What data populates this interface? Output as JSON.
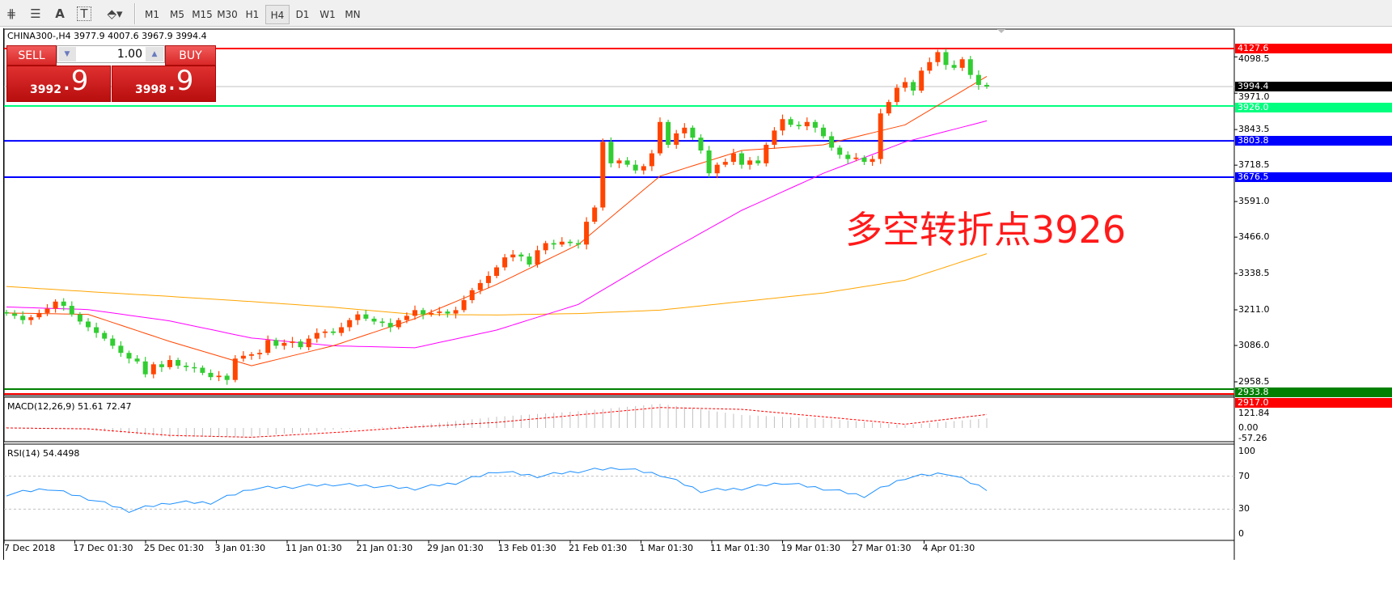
{
  "toolbar": {
    "icons": [
      "fibonacci-fan-icon",
      "fibonacci-lines-icon",
      "text-icon",
      "text-label-icon",
      "arrows-dropdown-icon"
    ],
    "text_icon_label": "A",
    "text_label_icon_label": "T",
    "timeframes": [
      "M1",
      "M5",
      "M15",
      "M30",
      "H1",
      "H4",
      "D1",
      "W1",
      "MN"
    ],
    "active_timeframe": "H4"
  },
  "chart": {
    "title": "CHINA300-,H4  3977.9 4007.6 3967.9 3994.4",
    "annotation": "多空转折点3926",
    "colors": {
      "bull": "#ff4500",
      "bear": "#32cd32",
      "ma_fast": "#ff4500",
      "ma_mid": "#ff00ff",
      "ma_slow": "#ffa500",
      "rsi": "#1e90ff",
      "macd_hist": "#c0c0c0",
      "macd_signal": "#ff0000"
    }
  },
  "trade_panel": {
    "sell_label": "SELL",
    "buy_label": "BUY",
    "lot": "1.00",
    "sell_price_main": "3992",
    "sell_price_pip": ".9",
    "buy_price_main": "3998",
    "buy_price_pip": ".9"
  },
  "price_axis": {
    "ticks": [
      "4098.5",
      "3971.0",
      "3843.5",
      "3718.5",
      "3591.0",
      "3466.0",
      "3338.5",
      "3211.0",
      "3086.0",
      "2958.5"
    ]
  },
  "levels": [
    {
      "label": "4127.6",
      "color": "#ff0000"
    },
    {
      "label": "3994.4",
      "color": "#000000"
    },
    {
      "label": "3926.0",
      "color": "#00ff7f"
    },
    {
      "label": "3803.8",
      "color": "#0000ff"
    },
    {
      "label": "3676.5",
      "color": "#0000ff"
    },
    {
      "label": "2933.8",
      "color": "#008000"
    },
    {
      "label": "2917.0",
      "color": "#ff0000"
    }
  ],
  "macd": {
    "label": "MACD(12,26,9) 51.61 72.47",
    "ticks": [
      "121.84",
      "0.00",
      "-57.26"
    ]
  },
  "rsi": {
    "label": "RSI(14) 54.4498",
    "ticks": [
      "100",
      "70",
      "30",
      "0"
    ]
  },
  "time_axis": [
    "7 Dec 2018",
    "17 Dec 01:30",
    "25 Dec 01:30",
    "3 Jan 01:30",
    "11 Jan 01:30",
    "21 Jan 01:30",
    "29 Jan 01:30",
    "13 Feb 01:30",
    "21 Feb 01:30",
    "1 Mar 01:30",
    "11 Mar 01:30",
    "19 Mar 01:30",
    "27 Mar 01:30",
    "4 Apr 01:30"
  ],
  "chart_data": {
    "type": "candlestick",
    "symbol": "CHINA300-",
    "timeframe": "H4",
    "ylim": [
      2917,
      4160
    ],
    "closes": [
      3198,
      3190,
      3175,
      3185,
      3200,
      3215,
      3240,
      3225,
      3195,
      3170,
      3150,
      3130,
      3110,
      3085,
      3060,
      3040,
      3030,
      2985,
      3020,
      3010,
      3035,
      3015,
      3010,
      3008,
      2990,
      2975,
      2980,
      2965,
      3040,
      3050,
      3055,
      3060,
      3105,
      3085,
      3095,
      3100,
      3080,
      3110,
      3130,
      3135,
      3130,
      3150,
      3175,
      3195,
      3180,
      3170,
      3165,
      3150,
      3175,
      3190,
      3210,
      3195,
      3200,
      3205,
      3198,
      3210,
      3245,
      3280,
      3305,
      3330,
      3360,
      3395,
      3405,
      3398,
      3370,
      3420,
      3445,
      3440,
      3450,
      3445,
      3440,
      3520,
      3570,
      3800,
      3725,
      3735,
      3720,
      3700,
      3715,
      3760,
      3870,
      3790,
      3830,
      3850,
      3815,
      3770,
      3690,
      3720,
      3730,
      3760,
      3720,
      3735,
      3725,
      3790,
      3840,
      3880,
      3860,
      3855,
      3870,
      3850,
      3820,
      3780,
      3755,
      3740,
      3745,
      3730,
      3740,
      3900,
      3940,
      3990,
      4010,
      3980,
      4050,
      4080,
      4115,
      4070,
      4060,
      4090,
      4035,
      4000,
      3994.4
    ],
    "ma_fast_every10": [
      3200,
      3195,
      3100,
      3015,
      3085,
      3180,
      3300,
      3440,
      3680,
      3770,
      3790,
      3860,
      4030
    ],
    "ma_mid_every10": [
      3221,
      3212,
      3172,
      3112,
      3085,
      3078,
      3140,
      3230,
      3400,
      3560,
      3690,
      3800,
      3874
    ],
    "ma_slow_every10": [
      3293,
      3275,
      3258,
      3240,
      3220,
      3195,
      3193,
      3198,
      3210,
      3240,
      3270,
      3315,
      3408
    ],
    "macd_every10": [
      5,
      -10,
      -50,
      -45,
      -10,
      15,
      60,
      90,
      130,
      70,
      50,
      15,
      51.61
    ],
    "signal_every10": [
      0,
      -5,
      -40,
      -50,
      -25,
      5,
      30,
      70,
      110,
      100,
      60,
      20,
      72.47
    ],
    "rsi_every5": [
      48,
      55,
      43,
      28,
      38,
      38,
      55,
      57,
      60,
      58,
      55,
      62,
      76,
      70,
      76,
      80,
      72,
      52,
      55,
      62,
      55,
      46,
      68,
      74,
      54.4498
    ],
    "levels": [
      4127.6,
      3994.4,
      3926.0,
      3803.8,
      3676.5,
      2933.8,
      2917.0
    ]
  }
}
